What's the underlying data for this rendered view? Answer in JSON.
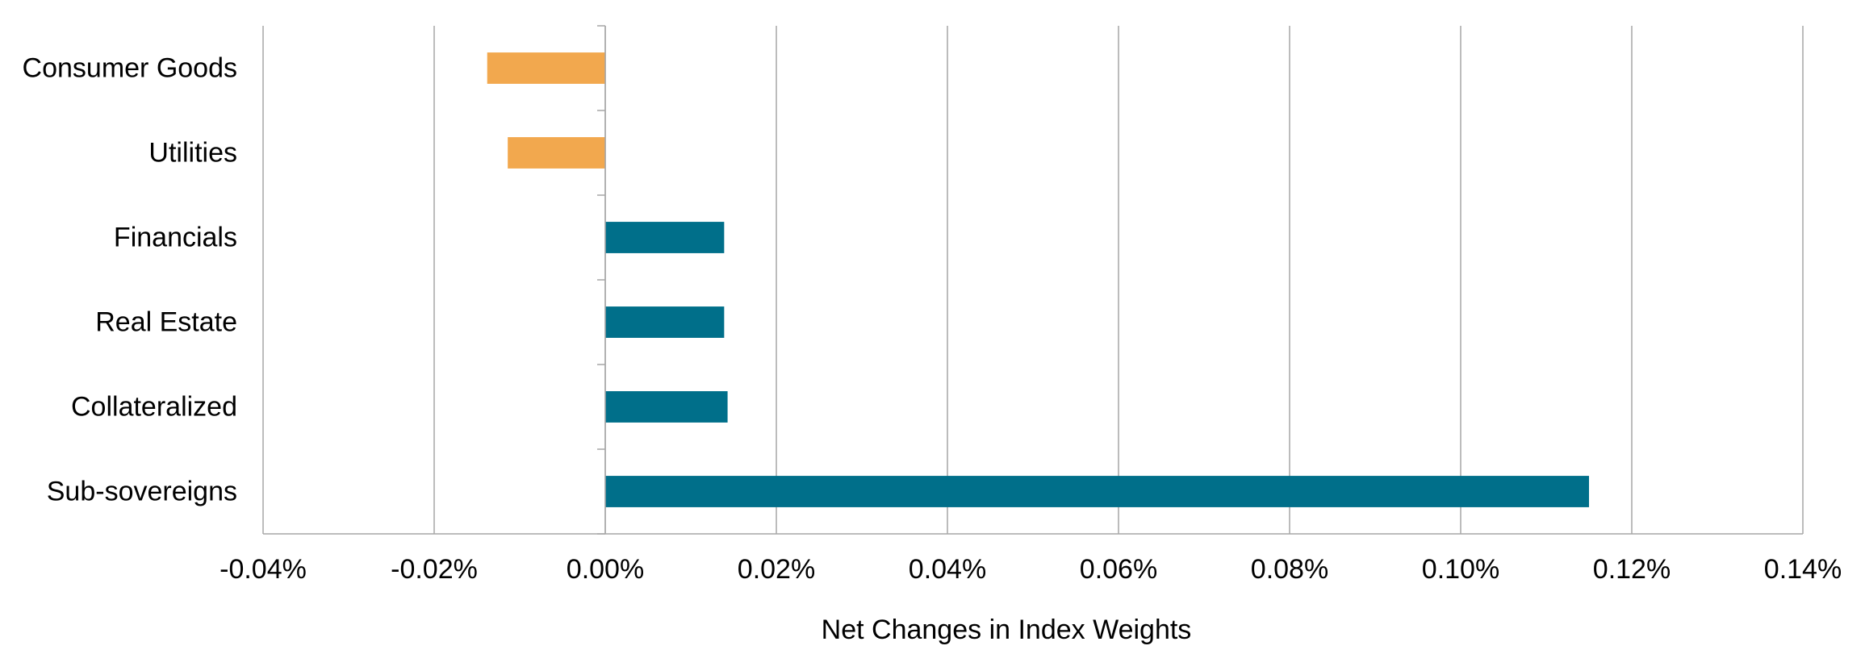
{
  "chart_data": {
    "type": "bar",
    "orientation": "horizontal",
    "title": "",
    "xlabel": "Net Changes in Index Weights",
    "ylabel": "",
    "xlim": [
      -0.04,
      0.14
    ],
    "xticks": [
      -0.04,
      -0.02,
      0.0,
      0.02,
      0.04,
      0.06,
      0.08,
      0.1,
      0.12,
      0.14
    ],
    "xtick_labels": [
      "-0.04%",
      "-0.02%",
      "0.00%",
      "0.02%",
      "0.04%",
      "0.06%",
      "0.08%",
      "0.10%",
      "0.12%",
      "0.14%"
    ],
    "grid": "vertical",
    "legend": "none",
    "categories": [
      "Consumer Goods",
      "Utilities",
      "Financials",
      "Real Estate",
      "Collateralized",
      "Sub-sovereigns"
    ],
    "values": [
      -0.0138,
      -0.0114,
      0.0139,
      0.0139,
      0.0143,
      0.115
    ],
    "colors": {
      "negative": "#F2A84E",
      "positive": "#006F8A",
      "grid": "#A6A6A6",
      "axis": "#A6A6A6"
    }
  }
}
